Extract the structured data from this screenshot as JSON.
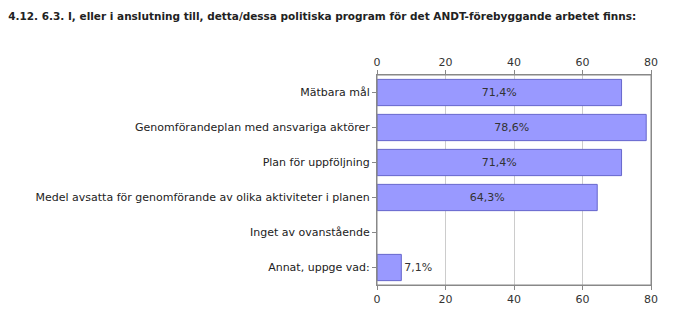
{
  "chart_data": {
    "type": "bar",
    "orientation": "horizontal",
    "title": "4.12. 6.3. I, eller i anslutning till, detta/dessa politiska program för det ANDT-förebyggande arbetet finns:",
    "categories": [
      "Mätbara mål",
      "Genomförandeplan med ansvariga aktörer",
      "Plan för uppföljning",
      "Medel avsatta för genomförande av olika aktiviteter i planen",
      "Inget av ovanstående",
      "Annat, uppge vad:"
    ],
    "values": [
      71.4,
      78.6,
      71.4,
      64.3,
      null,
      7.1
    ],
    "value_labels": [
      "71,4%",
      "78,6%",
      "71,4%",
      "64,3%",
      null,
      "7,1%"
    ],
    "data_labels": true,
    "color": "#9999ff",
    "xlim": [
      0,
      80
    ],
    "xticks": [
      0,
      20,
      40,
      60,
      80
    ],
    "grid": true
  }
}
